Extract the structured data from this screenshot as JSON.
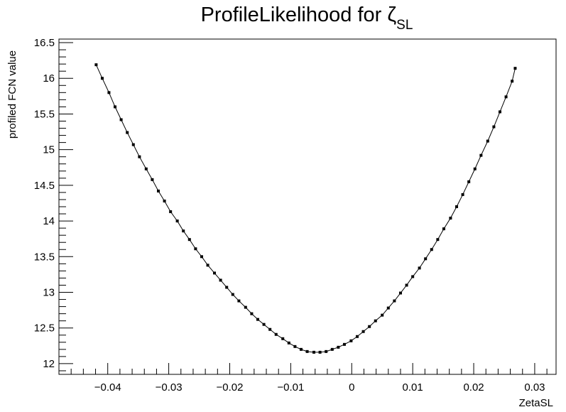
{
  "chart_data": {
    "type": "line",
    "title": "ProfileLikelihood for ",
    "title_symbol": "ζ",
    "title_subscript": "SL",
    "xlabel": "ZetaSL",
    "ylabel": "profiled FCN value",
    "xlim": [
      -0.048,
      0.0335
    ],
    "ylim": [
      11.85,
      16.55
    ],
    "x_ticks": [
      -0.04,
      -0.03,
      -0.02,
      -0.01,
      0,
      0.01,
      0.02,
      0.03
    ],
    "x_tick_labels": [
      "−0.04",
      "−0.03",
      "−0.02",
      "−0.01",
      "0",
      "0.01",
      "0.02",
      "0.03"
    ],
    "y_ticks": [
      12,
      12.5,
      13,
      13.5,
      14,
      14.5,
      15,
      15.5,
      16,
      16.5
    ],
    "y_tick_labels": [
      "12",
      "12.5",
      "13",
      "13.5",
      "14",
      "14.5",
      "15",
      "15.5",
      "16",
      "16.5"
    ],
    "grid": false,
    "marker": "square",
    "series": [
      {
        "x": [
          -0.0419,
          -0.0409,
          -0.0398,
          -0.0388,
          -0.0378,
          -0.0368,
          -0.0358,
          -0.0348,
          -0.0337,
          -0.0327,
          -0.0317,
          -0.0307,
          -0.0297,
          -0.0286,
          -0.0276,
          -0.0266,
          -0.0256,
          -0.0246,
          -0.0236,
          -0.0225,
          -0.0215,
          -0.0205,
          -0.0195,
          -0.0185,
          -0.0174,
          -0.0164,
          -0.0154,
          -0.0144,
          -0.0134,
          -0.0124,
          -0.0113,
          -0.0103,
          -0.0093,
          -0.0083,
          -0.0073,
          -0.0062,
          -0.0052,
          -0.0042,
          -0.0032,
          -0.0022,
          -0.0012,
          -0.0001,
          0.0009,
          0.0019,
          0.0029,
          0.0039,
          0.005,
          0.006,
          0.007,
          0.008,
          0.009,
          0.01,
          0.0111,
          0.0121,
          0.0131,
          0.0141,
          0.0151,
          0.0162,
          0.0172,
          0.0182,
          0.0192,
          0.0202,
          0.0212,
          0.0223,
          0.0233,
          0.0243,
          0.0253,
          0.0263,
          0.0268
        ],
        "y": [
          16.19,
          16.0,
          15.8,
          15.6,
          15.42,
          15.24,
          15.07,
          14.9,
          14.73,
          14.58,
          14.42,
          14.28,
          14.13,
          14.0,
          13.86,
          13.74,
          13.61,
          13.5,
          13.38,
          13.27,
          13.17,
          13.07,
          12.97,
          12.88,
          12.79,
          12.7,
          12.62,
          12.55,
          12.48,
          12.41,
          12.35,
          12.29,
          12.24,
          12.2,
          12.17,
          12.16,
          12.16,
          12.17,
          12.2,
          12.23,
          12.27,
          12.32,
          12.38,
          12.45,
          12.52,
          12.6,
          12.68,
          12.78,
          12.88,
          12.99,
          13.1,
          13.22,
          13.34,
          13.47,
          13.6,
          13.74,
          13.89,
          14.04,
          14.2,
          14.37,
          14.55,
          14.73,
          14.92,
          15.12,
          15.32,
          15.53,
          15.74,
          15.96,
          16.14
        ]
      }
    ]
  }
}
